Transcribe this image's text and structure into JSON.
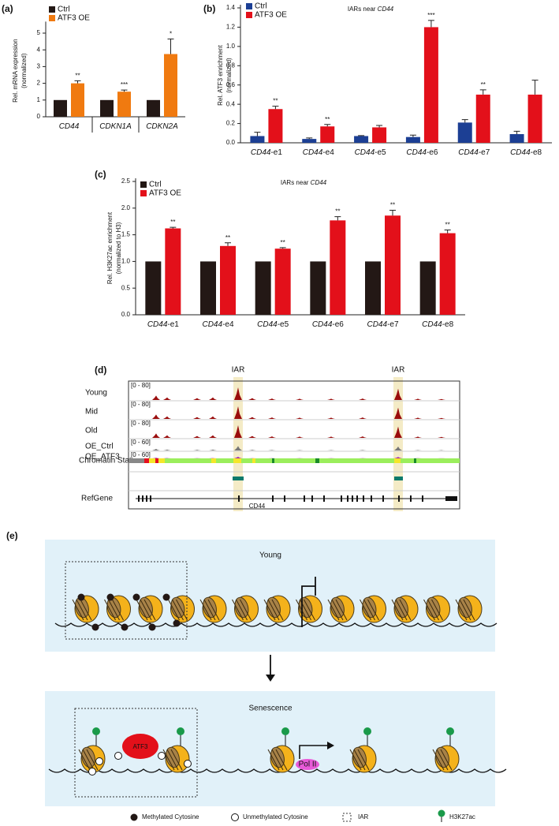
{
  "panel_labels": [
    "(a)",
    "(b)",
    "(c)",
    "(d)",
    "(e)"
  ],
  "chart_data": [
    {
      "type": "bar",
      "ylabel": [
        "Rel. mRNA expression",
        "(normalized)"
      ],
      "categories": [
        "CD44",
        "CDKN1A",
        "CDKN2A"
      ],
      "series": [
        {
          "name": "Ctrl",
          "color": "#231815",
          "values": [
            1,
            1,
            1
          ]
        },
        {
          "name": "ATF3 OE",
          "color": "#f07a10",
          "values": [
            2.0,
            1.5,
            3.75
          ],
          "errors": [
            0.15,
            0.1,
            0.9
          ],
          "significance": [
            "**",
            "***",
            "*"
          ]
        }
      ],
      "ylim": [
        0,
        5.5
      ],
      "yticks": [
        0,
        1,
        2,
        3,
        4,
        5
      ],
      "legend": "upper left"
    },
    {
      "type": "bar",
      "title": "IARs near CD44",
      "ylabel": [
        "Rel. ATF3 enrichment",
        "(normalized)"
      ],
      "categories": [
        "CD44-e1",
        "CD44-e4",
        "CD44-e5",
        "CD44-e6",
        "CD44-e7",
        "CD44-e8"
      ],
      "series": [
        {
          "name": "Ctrl",
          "color": "#1c3f94",
          "values": [
            0.07,
            0.04,
            0.07,
            0.06,
            0.21,
            0.09
          ],
          "errors": [
            0.04,
            0.01,
            0.005,
            0.02,
            0.03,
            0.03
          ]
        },
        {
          "name": "ATF3 OE",
          "color": "#e3101a",
          "values": [
            0.35,
            0.17,
            0.16,
            1.2,
            0.5,
            0.5
          ],
          "errors": [
            0.03,
            0.02,
            0.02,
            0.07,
            0.05,
            0.15
          ],
          "significance": [
            "**",
            "**",
            null,
            "***",
            "**",
            null
          ]
        }
      ],
      "ylim": [
        0,
        1.4
      ],
      "yticks": [
        {
          "value": 0,
          "label": "0.0"
        },
        0.2,
        0.4,
        0.6,
        0.8,
        {
          "value": 1,
          "label": "1.0"
        },
        1.2,
        1.4
      ],
      "legend": "upper left"
    },
    {
      "type": "bar",
      "title": "IARs near CD44",
      "ylabel": [
        "Rel. H3K27ac enrichment",
        "(normalized to H3)"
      ],
      "categories": [
        "CD44-e1",
        "CD44-e4",
        "CD44-e5",
        "CD44-e6",
        "CD44-e7",
        "CD44-e8"
      ],
      "series": [
        {
          "name": "Ctrl",
          "color": "#231815",
          "values": [
            1,
            1,
            1,
            1,
            1,
            1
          ]
        },
        {
          "name": "ATF3 OE",
          "color": "#e3101a",
          "values": [
            1.62,
            1.29,
            1.24,
            1.77,
            1.86,
            1.53
          ],
          "errors": [
            0.02,
            0.06,
            0.02,
            0.07,
            0.1,
            0.06
          ],
          "significance": [
            "**",
            "**",
            "**",
            "**",
            "**",
            "**"
          ]
        }
      ],
      "ylim": [
        0,
        2.5
      ],
      "yticks": [
        {
          "value": 0,
          "label": "0.0"
        },
        0.5,
        {
          "value": 1,
          "label": "1.0"
        },
        1.5,
        {
          "value": 2,
          "label": "2.0"
        },
        2.5
      ],
      "legend": "upper left"
    }
  ],
  "tracks": {
    "iar_labels": [
      "IAR",
      "IAR"
    ],
    "rows": [
      {
        "name": "Young",
        "range": "[0 - 80]"
      },
      {
        "name": "Mid",
        "range": "[0 - 80]"
      },
      {
        "name": "Old",
        "range": "[0 - 80]"
      },
      {
        "name": "OE_Ctrl",
        "range": "[0 - 60]"
      },
      {
        "name": "OE_ATF3",
        "range": "[0 - 60]"
      }
    ],
    "chromatin_state": "Chromatin State",
    "refgene": "RefGene",
    "gene": "CD44"
  },
  "diagram": {
    "young": "Young",
    "senescence": "Senescence",
    "atf3": "ATF3",
    "pol2": "Pol II",
    "legend": [
      "Methylated Cytosine",
      "Unmethylated Cytosine",
      "IAR",
      "H3K27ac"
    ]
  }
}
